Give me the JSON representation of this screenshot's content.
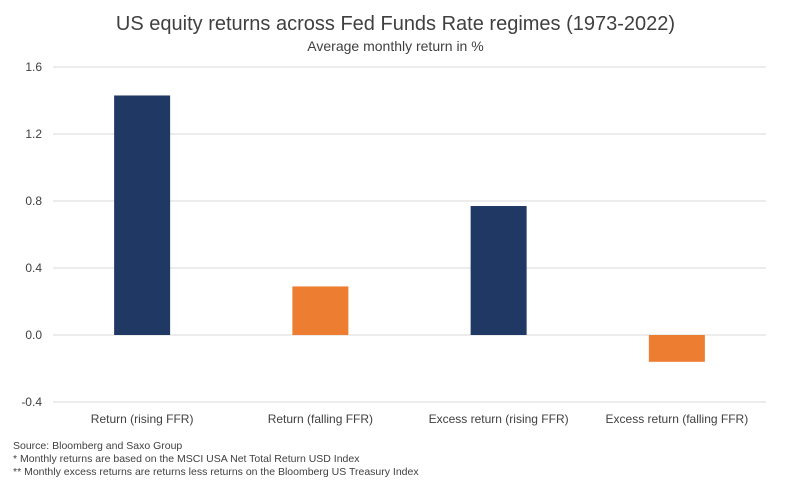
{
  "chart_data": {
    "type": "bar",
    "title": "US equity returns across Fed Funds Rate regimes (1973-2022)",
    "subtitle": "Average monthly return in %",
    "categories": [
      "Return (rising FFR)",
      "Return (falling FFR)",
      "Excess return (rising FFR)",
      "Excess return (falling FFR)"
    ],
    "values": [
      1.43,
      0.29,
      0.77,
      -0.16
    ],
    "bar_colors": [
      "#203864",
      "#ED7D31",
      "#203864",
      "#ED7D31"
    ],
    "ylim": [
      -0.4,
      1.6
    ],
    "yticks": [
      "1.6",
      "1.2",
      "0.8",
      "0.4",
      "0.0",
      "-0.4"
    ],
    "ytick_values": [
      1.6,
      1.2,
      0.8,
      0.4,
      0.0,
      -0.4
    ],
    "grid": true,
    "xlabel": "",
    "ylabel": ""
  },
  "notes": {
    "source": "Source: Bloomberg and Saxo Group",
    "note1": "* Monthly returns are based on the MSCI USA Net Total Return USD Index",
    "note2": "** Monthly excess returns are returns less returns on the Bloomberg US Treasury Index"
  }
}
